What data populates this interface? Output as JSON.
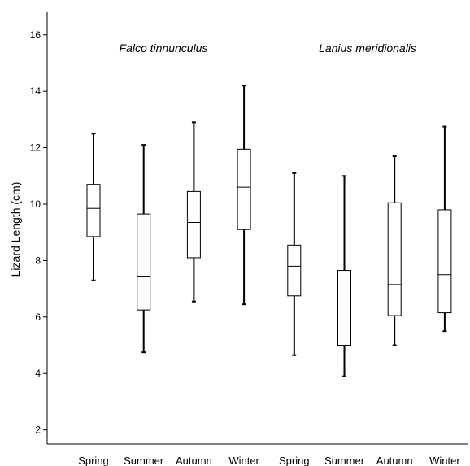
{
  "chart_data": {
    "type": "boxplot",
    "ylabel": "Lizard Length (cm)",
    "ylim": [
      1.5,
      16.8
    ],
    "yticks": [
      "2",
      "4",
      "6",
      "8",
      "10",
      "12",
      "14",
      "16"
    ],
    "grid": false,
    "categories": [
      "Spring",
      "Summer",
      "Autumn",
      "Winter",
      "Spring",
      "Summer",
      "Autumn",
      "Winter"
    ],
    "groups": [
      {
        "name": "Falco tinnunculus",
        "boxes": [
          {
            "category": "Spring",
            "whisker_low": 7.3,
            "q1": 8.85,
            "median": 9.85,
            "q3": 10.7,
            "whisker_high": 12.5
          },
          {
            "category": "Summer",
            "whisker_low": 4.75,
            "q1": 6.25,
            "median": 7.45,
            "q3": 9.65,
            "whisker_high": 12.1
          },
          {
            "category": "Autumn",
            "whisker_low": 6.55,
            "q1": 8.1,
            "median": 9.35,
            "q3": 10.45,
            "whisker_high": 12.9
          },
          {
            "category": "Winter",
            "whisker_low": 6.45,
            "q1": 9.1,
            "median": 10.6,
            "q3": 11.95,
            "whisker_high": 14.2
          }
        ]
      },
      {
        "name": "Lanius meridionalis",
        "boxes": [
          {
            "category": "Spring",
            "whisker_low": 4.65,
            "q1": 6.75,
            "median": 7.8,
            "q3": 8.55,
            "whisker_high": 11.1
          },
          {
            "category": "Summer",
            "whisker_low": 3.9,
            "q1": 5.0,
            "median": 5.75,
            "q3": 7.65,
            "whisker_high": 11.0
          },
          {
            "category": "Autumn",
            "whisker_low": 5.0,
            "q1": 6.05,
            "median": 7.15,
            "q3": 10.05,
            "whisker_high": 11.7
          },
          {
            "category": "Winter",
            "whisker_low": 5.5,
            "q1": 6.15,
            "median": 7.5,
            "q3": 9.8,
            "whisker_high": 12.75
          }
        ]
      }
    ]
  }
}
